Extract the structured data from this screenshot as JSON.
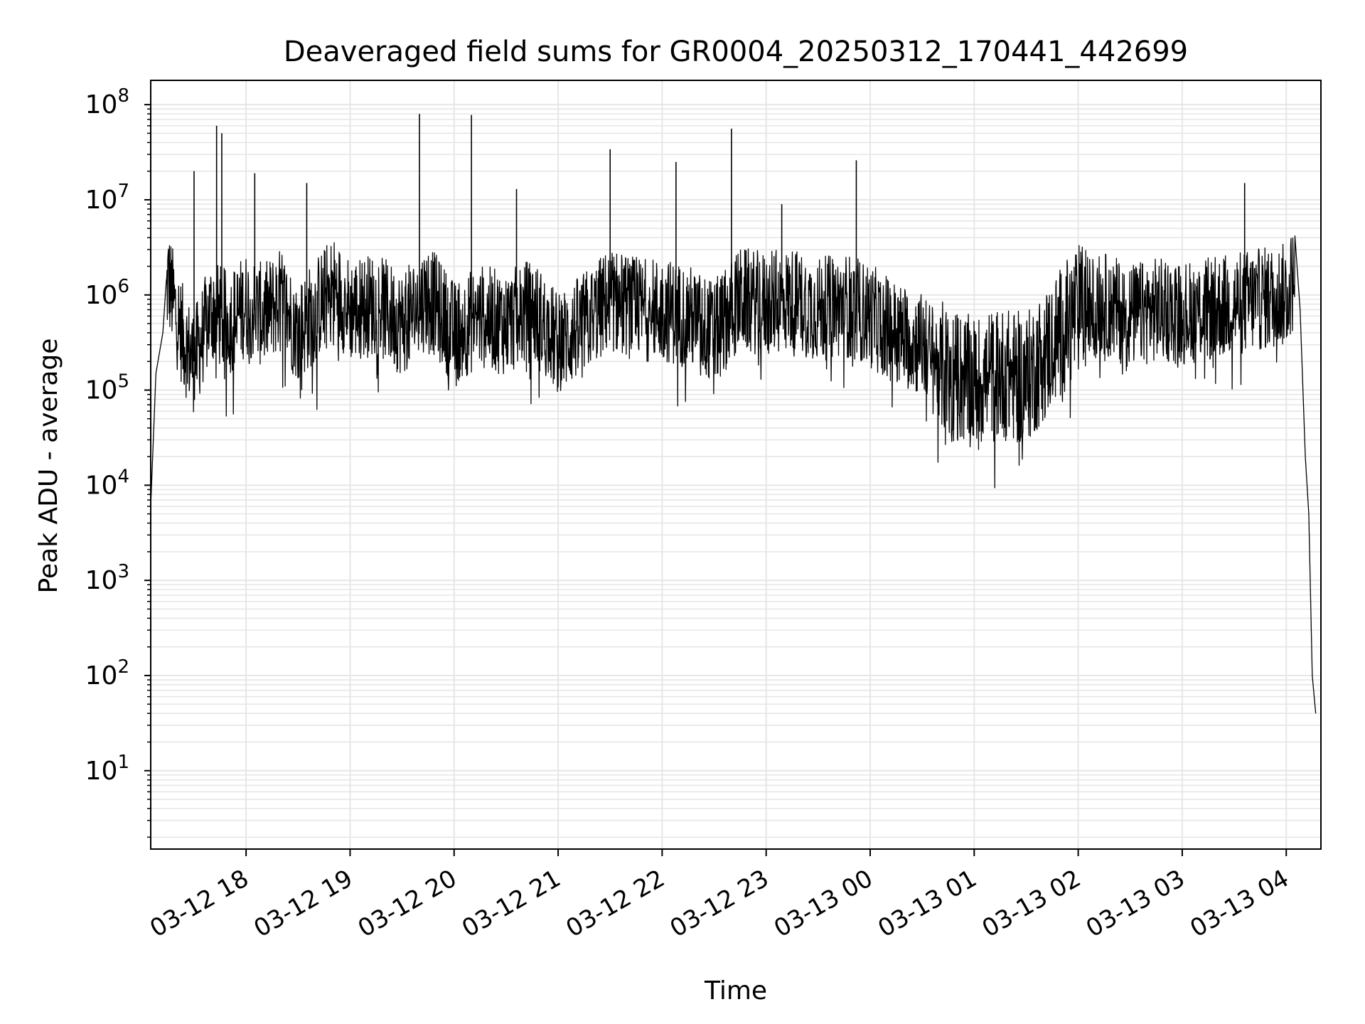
{
  "chart_data": {
    "type": "line",
    "title": "Deaveraged field sums for GR0004_20250312_170441_442699",
    "xlabel": "Time",
    "ylabel": "Peak ADU - average",
    "yscale": "log",
    "ylim": [
      1.5,
      180000000
    ],
    "xlim": [
      "2025-03-12 17:05",
      "2025-03-13 04:20"
    ],
    "grid": true,
    "grid_minor": true,
    "line_color": "#000000",
    "grid_color": "#e6e6e6",
    "x_ticks": [
      {
        "t": "2025-03-12 18:00",
        "label": "03-12 18"
      },
      {
        "t": "2025-03-12 19:00",
        "label": "03-12 19"
      },
      {
        "t": "2025-03-12 20:00",
        "label": "03-12 20"
      },
      {
        "t": "2025-03-12 21:00",
        "label": "03-12 21"
      },
      {
        "t": "2025-03-12 22:00",
        "label": "03-12 22"
      },
      {
        "t": "2025-03-12 23:00",
        "label": "03-12 23"
      },
      {
        "t": "2025-03-13 00:00",
        "label": "03-13 00"
      },
      {
        "t": "2025-03-13 01:00",
        "label": "03-13 01"
      },
      {
        "t": "2025-03-13 02:00",
        "label": "03-13 02"
      },
      {
        "t": "2025-03-13 03:00",
        "label": "03-13 03"
      },
      {
        "t": "2025-03-13 04:00",
        "label": "03-13 04"
      }
    ],
    "y_ticks": [
      {
        "value": 10,
        "base": "10",
        "exp": "1"
      },
      {
        "value": 100,
        "base": "10",
        "exp": "2"
      },
      {
        "value": 1000,
        "base": "10",
        "exp": "3"
      },
      {
        "value": 10000,
        "base": "10",
        "exp": "4"
      },
      {
        "value": 100000,
        "base": "10",
        "exp": "5"
      },
      {
        "value": 1000000,
        "base": "10",
        "exp": "6"
      },
      {
        "value": 10000000,
        "base": "10",
        "exp": "7"
      },
      {
        "value": 100000000,
        "base": "10",
        "exp": "8"
      }
    ],
    "series": [
      {
        "x": [
          "2025-03-12 17:05",
          "2025-03-12 17:08",
          "2025-03-12 17:12",
          "2025-03-12 17:15",
          "2025-03-12 17:20",
          "2025-03-12 17:25",
          "2025-03-12 17:30",
          "2025-03-12 17:40",
          "2025-03-12 17:50",
          "2025-03-12 18:00",
          "2025-03-12 18:10",
          "2025-03-12 18:20",
          "2025-03-12 18:30",
          "2025-03-12 18:40",
          "2025-03-12 18:50",
          "2025-03-12 19:00",
          "2025-03-12 19:15",
          "2025-03-12 19:30",
          "2025-03-12 19:45",
          "2025-03-12 20:00",
          "2025-03-12 20:15",
          "2025-03-12 20:30",
          "2025-03-12 20:45",
          "2025-03-12 21:00",
          "2025-03-12 21:15",
          "2025-03-12 21:30",
          "2025-03-12 21:45",
          "2025-03-12 22:00",
          "2025-03-12 22:15",
          "2025-03-12 22:30",
          "2025-03-12 22:45",
          "2025-03-12 23:00",
          "2025-03-12 23:15",
          "2025-03-12 23:30",
          "2025-03-12 23:45",
          "2025-03-13 00:00",
          "2025-03-13 00:15",
          "2025-03-13 00:30",
          "2025-03-13 00:45",
          "2025-03-13 01:00",
          "2025-03-13 01:15",
          "2025-03-13 01:30",
          "2025-03-13 01:45",
          "2025-03-13 02:00",
          "2025-03-13 02:15",
          "2025-03-13 02:30",
          "2025-03-13 02:45",
          "2025-03-13 03:00",
          "2025-03-13 03:15",
          "2025-03-13 03:30",
          "2025-03-13 03:45",
          "2025-03-13 04:00",
          "2025-03-13 04:05",
          "2025-03-13 04:08",
          "2025-03-13 04:11",
          "2025-03-13 04:13",
          "2025-03-13 04:15",
          "2025-03-13 04:17"
        ],
        "y": [
          6000,
          150000,
          400000,
          1500000,
          600000,
          300000,
          200000,
          700000,
          500000,
          800000,
          600000,
          900000,
          400000,
          700000,
          1200000,
          700000,
          800000,
          500000,
          1000000,
          400000,
          600000,
          500000,
          700000,
          300000,
          500000,
          900000,
          700000,
          700000,
          600000,
          400000,
          900000,
          800000,
          900000,
          700000,
          800000,
          600000,
          400000,
          300000,
          150000,
          120000,
          150000,
          130000,
          300000,
          700000,
          800000,
          600000,
          700000,
          650000,
          700000,
          800000,
          900000,
          1000000,
          1600000,
          700000,
          20000,
          5000,
          100,
          40
        ]
      }
    ],
    "spikes": [
      {
        "t": "2025-03-12 17:30",
        "y": 20000000
      },
      {
        "t": "2025-03-12 17:43",
        "y": 60000000
      },
      {
        "t": "2025-03-12 17:46",
        "y": 50000000
      },
      {
        "t": "2025-03-12 18:05",
        "y": 19000000
      },
      {
        "t": "2025-03-12 18:35",
        "y": 15000000
      },
      {
        "t": "2025-03-12 19:40",
        "y": 80000000
      },
      {
        "t": "2025-03-12 20:10",
        "y": 78000000
      },
      {
        "t": "2025-03-12 20:36",
        "y": 13000000
      },
      {
        "t": "2025-03-12 21:30",
        "y": 34000000
      },
      {
        "t": "2025-03-12 22:08",
        "y": 25000000
      },
      {
        "t": "2025-03-12 22:40",
        "y": 56000000
      },
      {
        "t": "2025-03-12 23:09",
        "y": 9000000
      },
      {
        "t": "2025-03-12 23:52",
        "y": 26000000
      },
      {
        "t": "2025-03-13 03:36",
        "y": 15000000
      }
    ]
  }
}
